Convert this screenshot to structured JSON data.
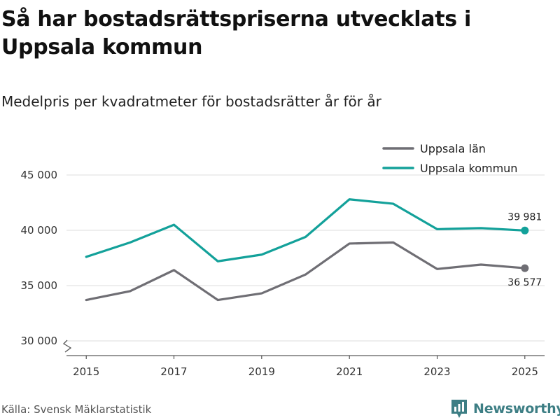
{
  "header": {
    "title": "Så har bostadsrättspriserna utvecklats i Uppsala kommun",
    "subtitle": "Medelpris per kvadratmeter för bostadsrätter år för år"
  },
  "footer": {
    "source": "Källa: Svensk Mäklarstatistik",
    "brand": "Newsworthy"
  },
  "colors": {
    "lan": "#6f6e74",
    "kommun": "#13a19a",
    "grid": "#dddddd",
    "brand": "#3d7e84"
  },
  "chart_data": {
    "type": "line",
    "title": "Så har bostadsrättspriserna utvecklats i Uppsala kommun",
    "subtitle": "Medelpris per kvadratmeter för bostadsrätter år för år",
    "xlabel": "",
    "ylabel": "",
    "x": [
      2015,
      2016,
      2017,
      2018,
      2019,
      2020,
      2021,
      2022,
      2023,
      2024,
      2025
    ],
    "x_ticks": [
      "2015",
      "2017",
      "2019",
      "2021",
      "2023",
      "2025"
    ],
    "x_tick_values": [
      2015,
      2017,
      2019,
      2021,
      2023,
      2025
    ],
    "y_ticks": [
      "30 000",
      "35 000",
      "40 000",
      "45 000"
    ],
    "y_tick_values": [
      30000,
      35000,
      40000,
      45000
    ],
    "ylim": [
      29000,
      46000
    ],
    "legend_position": "top-right",
    "series": [
      {
        "name": "Uppsala län",
        "color": "#6f6e74",
        "values": [
          33700,
          34500,
          36400,
          33700,
          34300,
          36000,
          38800,
          38900,
          36500,
          36900,
          36577
        ],
        "end_label": "36 577"
      },
      {
        "name": "Uppsala kommun",
        "color": "#13a19a",
        "values": [
          37600,
          38900,
          40500,
          37200,
          37800,
          39400,
          42800,
          42400,
          40100,
          40200,
          39981
        ],
        "end_label": "39 981"
      }
    ]
  }
}
